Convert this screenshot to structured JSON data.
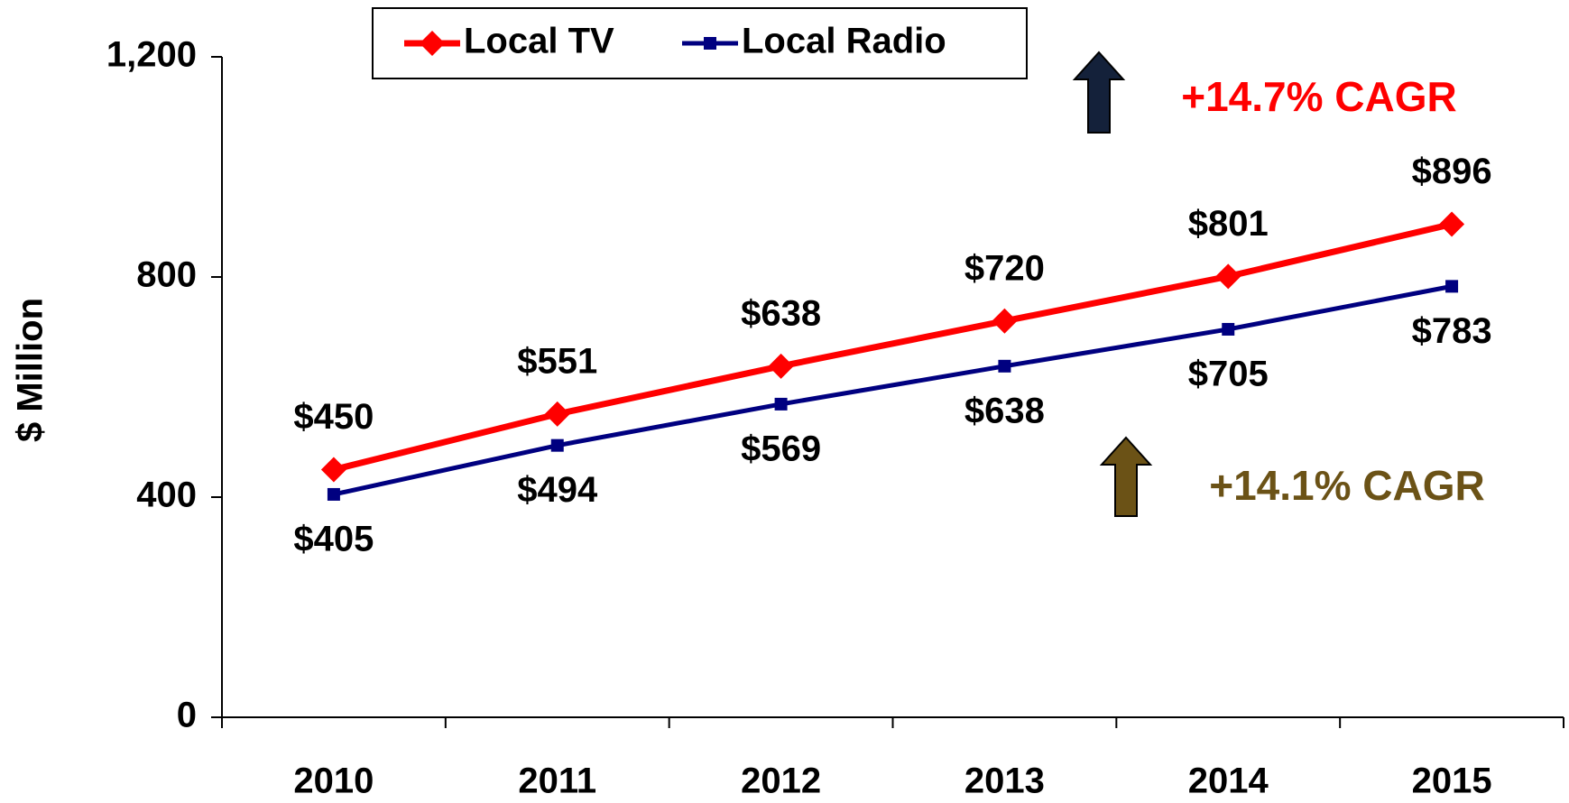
{
  "chart_data": {
    "type": "line",
    "y_label": "$ Million",
    "categories": [
      "2010",
      "2011",
      "2012",
      "2013",
      "2014",
      "2015"
    ],
    "series": [
      {
        "name": "Local TV",
        "color": "#ff0000",
        "marker": "diamond",
        "values": [
          450,
          551,
          638,
          720,
          801,
          896
        ],
        "value_labels": [
          "$450",
          "$551",
          "$638",
          "$720",
          "$801",
          "$896"
        ]
      },
      {
        "name": "Local Radio",
        "color": "#000080",
        "marker": "square",
        "values": [
          405,
          494,
          569,
          638,
          705,
          783
        ],
        "value_labels": [
          "$405",
          "$494",
          "$569",
          "$638",
          "$705",
          "$783"
        ]
      }
    ],
    "ylim": [
      0,
      1200
    ],
    "yticks": [
      0,
      400,
      800,
      {
        "value": 1200,
        "label": "1,200"
      }
    ],
    "grid": false,
    "legend": "top",
    "annotations": [
      {
        "text": "+14.7% CAGR",
        "color": "#ff0000"
      },
      {
        "text": "+14.1% CAGR",
        "color": "#6b5216"
      }
    ]
  }
}
